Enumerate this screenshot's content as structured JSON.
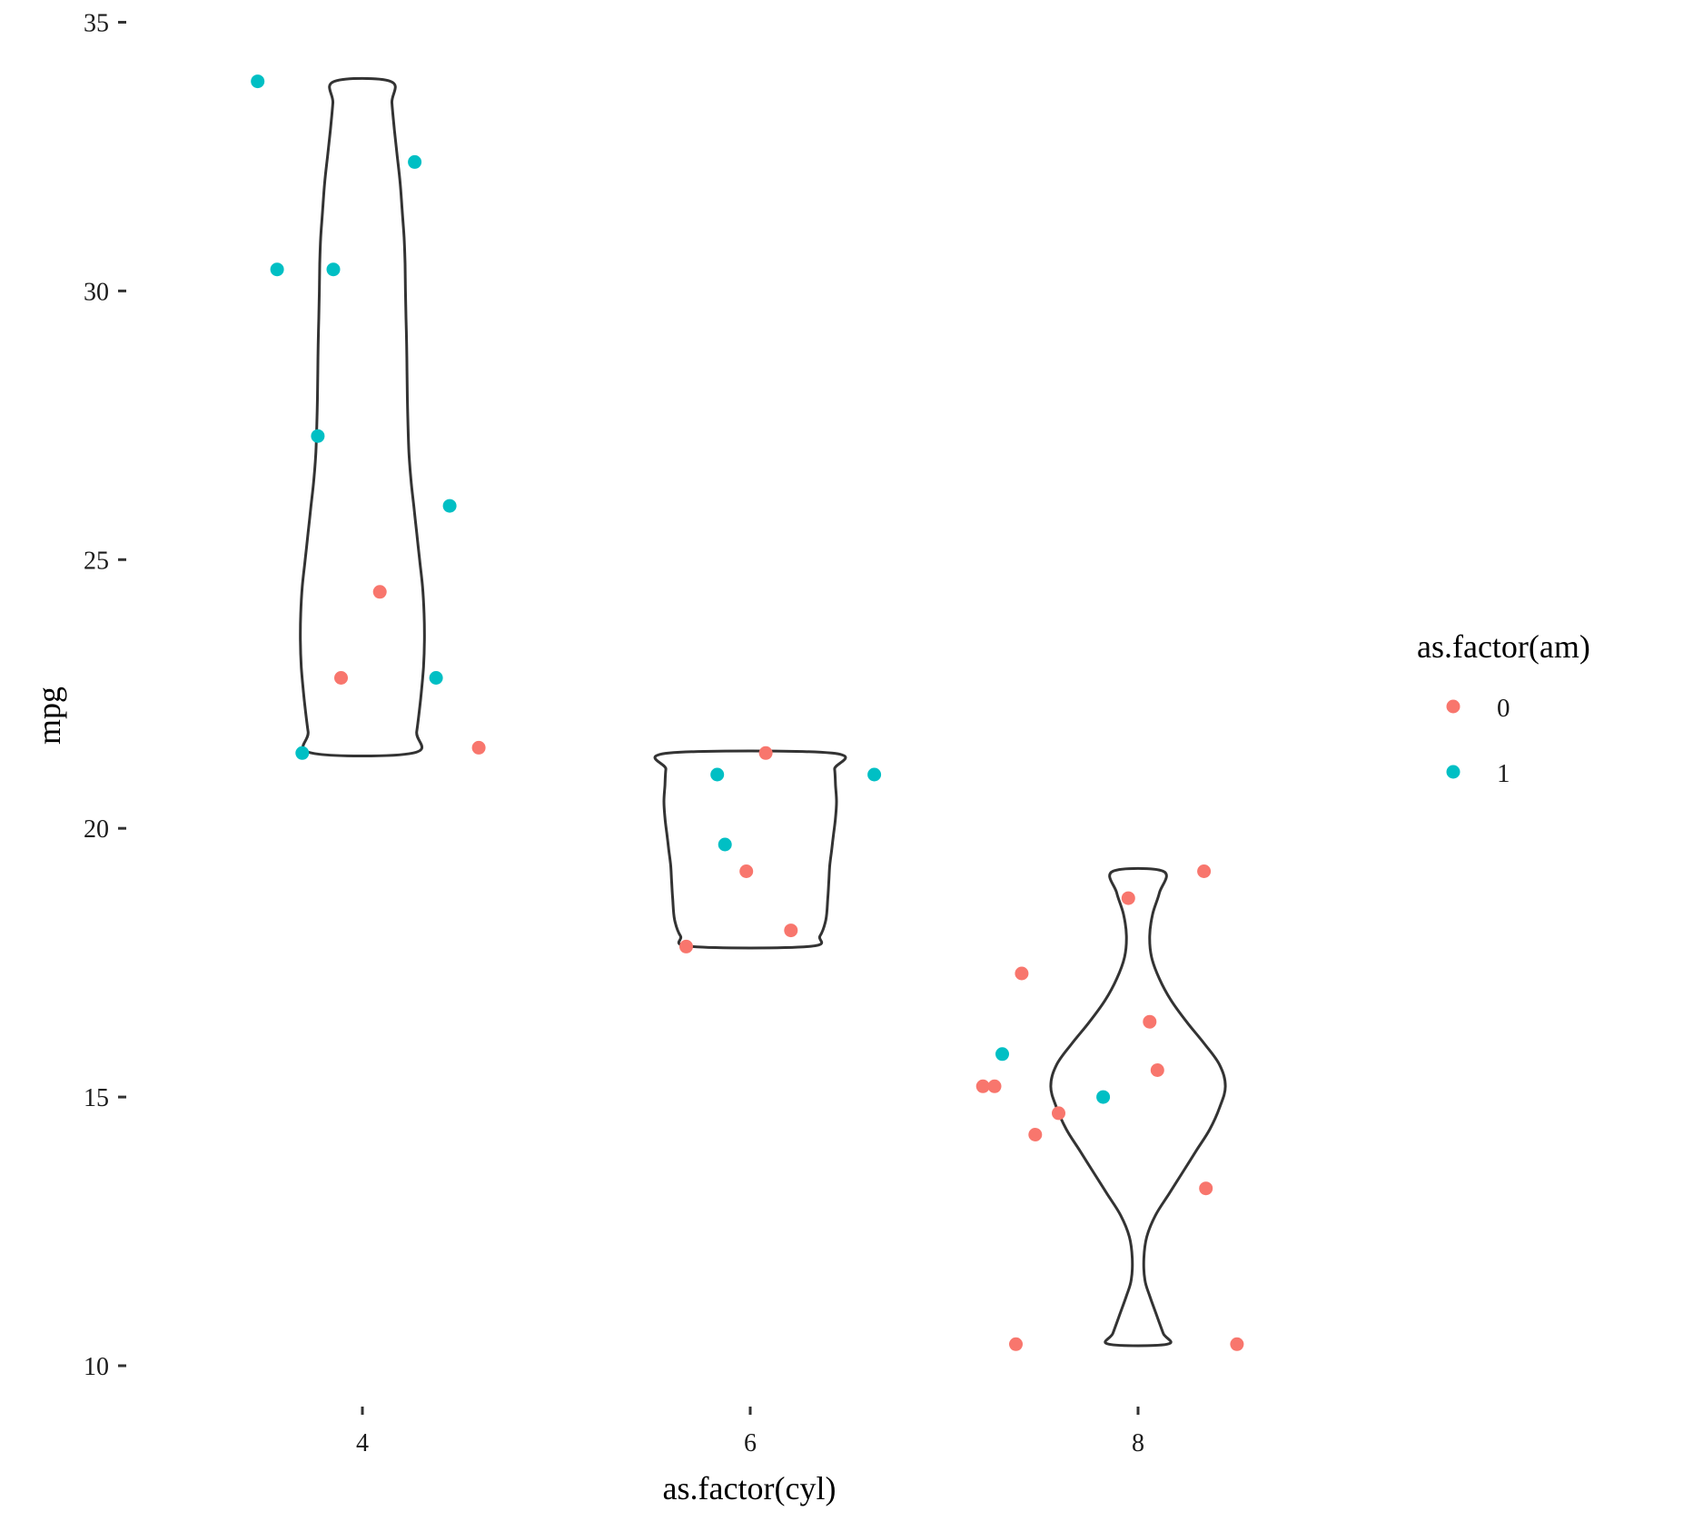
{
  "chart_data": {
    "type": "violin + jittered scatter",
    "xlabel": "as.factor(cyl)",
    "ylabel": "mpg",
    "categories": [
      "4",
      "6",
      "8"
    ],
    "ylim": [
      9.1,
      35.5
    ],
    "y_ticks": [
      10,
      15,
      20,
      25,
      30,
      35
    ],
    "grid": false,
    "legend": {
      "title": "as.factor(am)",
      "position": "right",
      "entries": [
        {
          "label": "0",
          "color": "#F8766D"
        },
        {
          "label": "1",
          "color": "#00BFC4"
        }
      ]
    },
    "violins": [
      {
        "category": "4",
        "profile": [
          [
            21.4,
            0.26
          ],
          [
            21.8,
            0.28
          ],
          [
            22.4,
            0.3
          ],
          [
            23.0,
            0.315
          ],
          [
            23.5,
            0.32
          ],
          [
            24.0,
            0.318
          ],
          [
            24.5,
            0.31
          ],
          [
            25.0,
            0.295
          ],
          [
            25.5,
            0.28
          ],
          [
            26.0,
            0.265
          ],
          [
            26.5,
            0.25
          ],
          [
            27.0,
            0.24
          ],
          [
            27.5,
            0.235
          ],
          [
            28.0,
            0.232
          ],
          [
            28.5,
            0.23
          ],
          [
            29.0,
            0.228
          ],
          [
            29.5,
            0.225
          ],
          [
            30.0,
            0.222
          ],
          [
            30.5,
            0.22
          ],
          [
            31.0,
            0.215
          ],
          [
            31.5,
            0.205
          ],
          [
            32.0,
            0.195
          ],
          [
            32.5,
            0.18
          ],
          [
            33.0,
            0.165
          ],
          [
            33.5,
            0.152
          ],
          [
            33.9,
            0.145
          ]
        ]
      },
      {
        "category": "6",
        "profile": [
          [
            17.8,
            0.3
          ],
          [
            18.0,
            0.36
          ],
          [
            18.3,
            0.39
          ],
          [
            18.7,
            0.4
          ],
          [
            19.0,
            0.405
          ],
          [
            19.3,
            0.41
          ],
          [
            19.6,
            0.42
          ],
          [
            19.9,
            0.43
          ],
          [
            20.2,
            0.44
          ],
          [
            20.5,
            0.445
          ],
          [
            20.8,
            0.44
          ],
          [
            21.1,
            0.435
          ],
          [
            21.4,
            0.42
          ]
        ]
      },
      {
        "category": "8",
        "profile": [
          [
            10.4,
            0.15
          ],
          [
            10.6,
            0.13
          ],
          [
            10.9,
            0.1
          ],
          [
            11.3,
            0.06
          ],
          [
            11.6,
            0.035
          ],
          [
            12.0,
            0.03
          ],
          [
            12.4,
            0.045
          ],
          [
            12.8,
            0.09
          ],
          [
            13.2,
            0.16
          ],
          [
            13.6,
            0.23
          ],
          [
            14.0,
            0.3
          ],
          [
            14.4,
            0.37
          ],
          [
            14.8,
            0.42
          ],
          [
            15.2,
            0.45
          ],
          [
            15.6,
            0.42
          ],
          [
            16.0,
            0.34
          ],
          [
            16.4,
            0.25
          ],
          [
            16.8,
            0.17
          ],
          [
            17.2,
            0.11
          ],
          [
            17.6,
            0.07
          ],
          [
            18.0,
            0.06
          ],
          [
            18.4,
            0.075
          ],
          [
            18.8,
            0.11
          ],
          [
            19.2,
            0.13
          ]
        ]
      }
    ],
    "points": [
      {
        "x": 3.46,
        "y": 33.9,
        "am": "1"
      },
      {
        "x": 3.56,
        "y": 30.4,
        "am": "1"
      },
      {
        "x": 3.85,
        "y": 30.4,
        "am": "1"
      },
      {
        "x": 4.27,
        "y": 32.4,
        "am": "1"
      },
      {
        "x": 3.77,
        "y": 27.3,
        "am": "1"
      },
      {
        "x": 4.45,
        "y": 26.0,
        "am": "1"
      },
      {
        "x": 4.09,
        "y": 24.4,
        "am": "0"
      },
      {
        "x": 3.89,
        "y": 22.8,
        "am": "0"
      },
      {
        "x": 4.38,
        "y": 22.8,
        "am": "1"
      },
      {
        "x": 3.69,
        "y": 21.4,
        "am": "1"
      },
      {
        "x": 4.6,
        "y": 21.5,
        "am": "0"
      },
      {
        "x": 6.08,
        "y": 21.4,
        "am": "0"
      },
      {
        "x": 5.83,
        "y": 21.0,
        "am": "1"
      },
      {
        "x": 6.64,
        "y": 21.0,
        "am": "1"
      },
      {
        "x": 5.87,
        "y": 19.7,
        "am": "1"
      },
      {
        "x": 5.98,
        "y": 19.2,
        "am": "0"
      },
      {
        "x": 6.21,
        "y": 18.1,
        "am": "0"
      },
      {
        "x": 5.67,
        "y": 17.8,
        "am": "0"
      },
      {
        "x": 8.34,
        "y": 19.2,
        "am": "0"
      },
      {
        "x": 7.95,
        "y": 18.7,
        "am": "0"
      },
      {
        "x": 7.4,
        "y": 17.3,
        "am": "0"
      },
      {
        "x": 8.06,
        "y": 16.4,
        "am": "0"
      },
      {
        "x": 7.3,
        "y": 15.8,
        "am": "1"
      },
      {
        "x": 8.1,
        "y": 15.5,
        "am": "0"
      },
      {
        "x": 7.2,
        "y": 15.2,
        "am": "0"
      },
      {
        "x": 7.26,
        "y": 15.2,
        "am": "0"
      },
      {
        "x": 7.82,
        "y": 15.0,
        "am": "1"
      },
      {
        "x": 7.59,
        "y": 14.7,
        "am": "0"
      },
      {
        "x": 7.47,
        "y": 14.3,
        "am": "0"
      },
      {
        "x": 8.35,
        "y": 13.3,
        "am": "0"
      },
      {
        "x": 7.37,
        "y": 10.4,
        "am": "0"
      },
      {
        "x": 8.51,
        "y": 10.4,
        "am": "0"
      }
    ]
  }
}
